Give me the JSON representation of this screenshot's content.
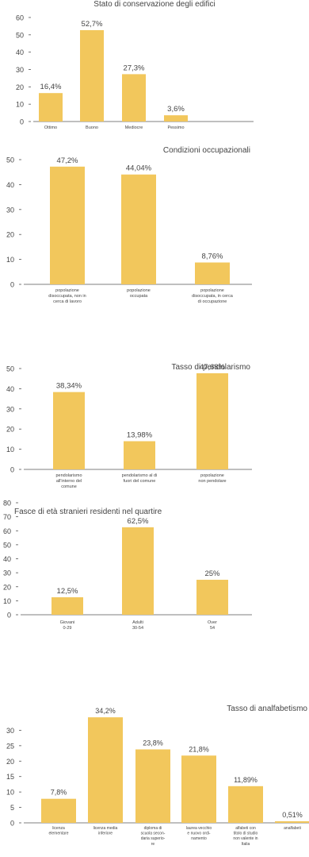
{
  "theme": {
    "bar_color": "#F2C75C",
    "axis_color": "#555555",
    "text_color": "#444444"
  },
  "chart_data": [
    {
      "type": "bar",
      "title": "Stato di conservazione degli edifici",
      "categories": [
        "Ottimo",
        "Buono",
        "Mediocre",
        "Pessimo"
      ],
      "values": [
        16.4,
        52.7,
        27.3,
        3.6
      ],
      "value_labels": [
        "16,4%",
        "52,7%",
        "27,3%",
        "3,6%"
      ],
      "yticks": [
        0,
        10,
        20,
        30,
        40,
        50,
        60
      ],
      "ylim": [
        0,
        60
      ]
    },
    {
      "type": "bar",
      "title": "Condizioni occupazionali",
      "categories": [
        [
          "popolazione",
          "disoccupata, non in",
          "cerca di lavoro"
        ],
        [
          "popolazione",
          "occupata"
        ],
        [
          "popolazione",
          "disoccupata, in cerca",
          "di occupazione"
        ]
      ],
      "values": [
        47.2,
        44.04,
        8.76
      ],
      "value_labels": [
        "47,2%",
        "44,04%",
        "8,76%"
      ],
      "yticks": [
        0,
        10,
        20,
        30,
        40,
        50
      ],
      "ylim": [
        0,
        50
      ]
    },
    {
      "type": "bar",
      "title": "Tasso di pendolarismo",
      "categories": [
        [
          "pendolarismo",
          "all'interno del",
          "comune"
        ],
        [
          "pendolarismo al di",
          "fuori del comune"
        ],
        [
          "popolazione",
          "non pendolare"
        ]
      ],
      "values": [
        38.34,
        13.98,
        47.68
      ],
      "value_labels": [
        "38,34%",
        "13,98%",
        "47,68%"
      ],
      "yticks": [
        0,
        10,
        20,
        30,
        40,
        50
      ],
      "ylim": [
        0,
        50
      ]
    },
    {
      "type": "bar",
      "title": "Fasce di età stranieri residenti nel quartire",
      "categories": [
        [
          "Giovani",
          "0-29"
        ],
        [
          "Adulti",
          "30-54"
        ],
        [
          "Over",
          "54"
        ]
      ],
      "values": [
        12.5,
        62.5,
        25
      ],
      "value_labels": [
        "12,5%",
        "62,5%",
        "25%"
      ],
      "yticks": [
        0,
        10,
        20,
        30,
        40,
        50,
        60,
        70,
        80
      ],
      "ylim": [
        0,
        80
      ]
    },
    {
      "type": "bar",
      "title": "Tasso di analfabetismo",
      "categories": [
        [
          "licenza",
          "elementare"
        ],
        [
          "licenza media",
          "inferiore"
        ],
        [
          "diploma di",
          "scuola secon-",
          "daria superio-",
          "re"
        ],
        [
          "laurea vecchio",
          "e nuovo ordi-",
          "namento"
        ],
        [
          "alfabeti con",
          "titolo di studio",
          "non valente in",
          "Italia"
        ],
        [
          "analfabeti"
        ]
      ],
      "values": [
        7.8,
        34.2,
        23.8,
        21.8,
        11.89,
        0.51
      ],
      "value_labels": [
        "7,8%",
        "34,2%",
        "23,8%",
        "21,8%",
        "11,89%",
        "0,51%"
      ],
      "yticks": [
        0,
        5,
        10,
        15,
        20,
        25,
        30
      ],
      "ylim": [
        0,
        35
      ]
    }
  ]
}
